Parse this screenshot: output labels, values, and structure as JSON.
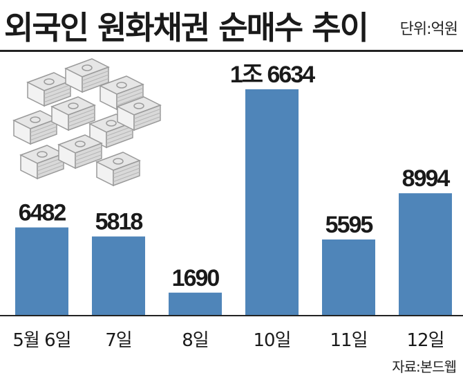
{
  "header": {
    "title": "외국인 원화채권 순매수 추이",
    "unit": "단위:억원"
  },
  "source": "자료:본드웹",
  "colors": {
    "bar": "#4f85b9",
    "text": "#1a1a1a",
    "axis": "#222222"
  },
  "illustration": "money-stacks-icon",
  "chart_data": {
    "type": "bar",
    "title": "외국인 원화채권 순매수 추이",
    "unit": "억원",
    "categories": [
      "5월 6일",
      "7일",
      "8일",
      "10일",
      "11일",
      "12일"
    ],
    "values": [
      6482,
      5818,
      1690,
      16634,
      5595,
      8994
    ],
    "value_labels": [
      "6482",
      "5818",
      "1690",
      "1조 6634",
      "5595",
      "8994"
    ],
    "ylim": [
      0,
      16634
    ],
    "grid": false,
    "legend": "none"
  }
}
